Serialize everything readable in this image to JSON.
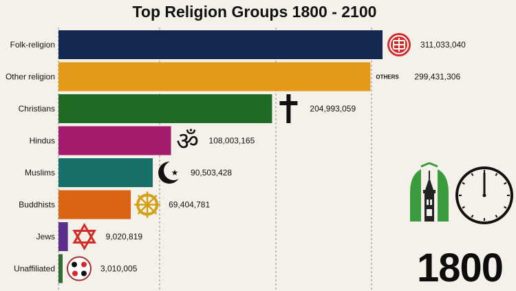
{
  "chart_data": {
    "type": "bar",
    "orientation": "horizontal",
    "title": "Top Religion Groups 1800 - 2100",
    "categories": [
      "Folk-religion",
      "Other religion",
      "Christians",
      "Hindus",
      "Muslims",
      "Buddhists",
      "Jews",
      "Unaffiliated"
    ],
    "values": [
      311033040,
      299431306,
      204993059,
      108003165,
      90503428,
      69404781,
      9020819,
      3010005
    ],
    "value_labels": [
      "311,033,040",
      "299,431,306",
      "204,993,059",
      "108,003,165",
      "90,503,428",
      "69,404,781",
      "9,020,819",
      "3,010,005"
    ],
    "colors": [
      "#14294f",
      "#e39a18",
      "#1f6b23",
      "#a51c6c",
      "#176f6a",
      "#d86414",
      "#5b2d8c",
      "#2f6a2f"
    ],
    "icons": [
      "shou-symbol-icon",
      "others-label",
      "latin-cross-icon",
      "om-icon",
      "crescent-star-icon",
      "dharma-wheel-icon",
      "star-of-david-icon",
      "mixed-symbols-icon"
    ],
    "others_text": "OTHERS",
    "xlim": [
      0,
      311033040
    ],
    "grid": "vertical-dashed",
    "legend": "none",
    "xlabel": "",
    "ylabel": ""
  },
  "year_display": "1800",
  "colors": {
    "background": "#f3f1ea",
    "logo_green": "#3b9a3b"
  },
  "decor": {
    "logo": "mosque-logo-icon",
    "clock": "clock-icon"
  }
}
